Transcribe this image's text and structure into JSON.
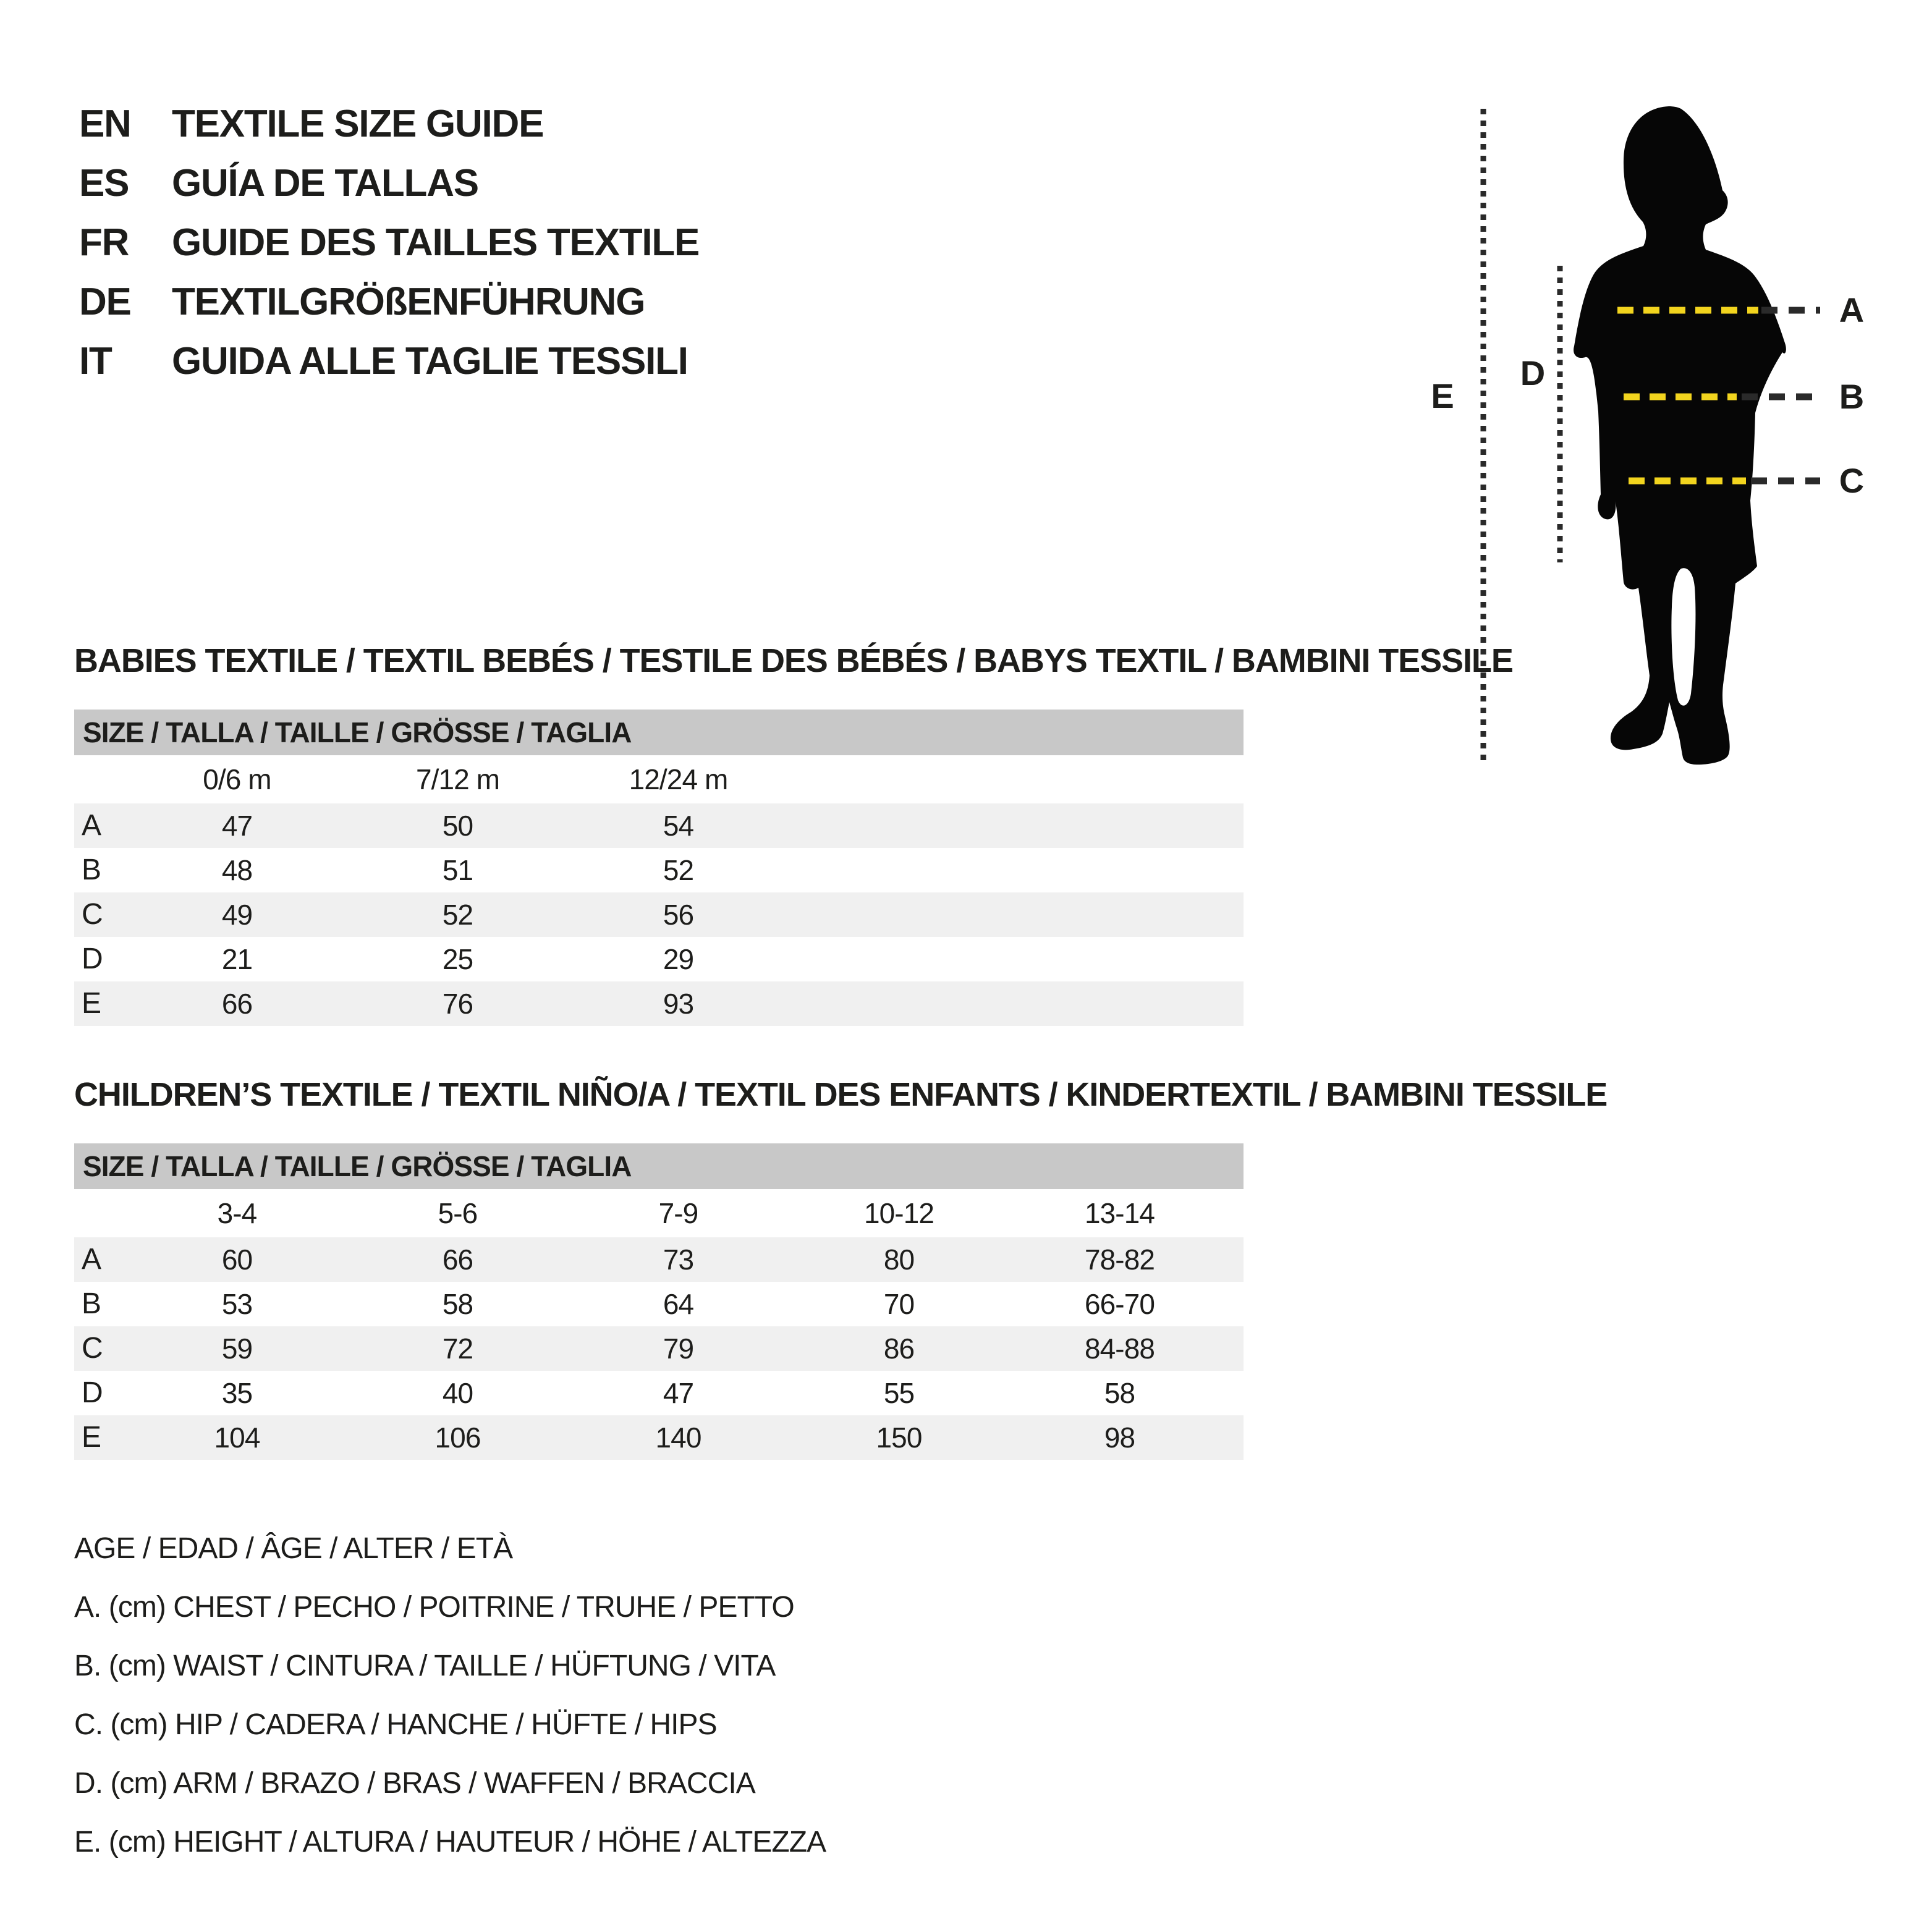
{
  "colors": {
    "ink": "#1d1d1b",
    "accent_yellow": "#f2d41e",
    "dash_dark": "#2a2a2a",
    "header_bar_gray": "#c8c8c8",
    "row_stripe_gray": "#f0f0f0",
    "silhouette_black": "#060606"
  },
  "header": {
    "languages": [
      {
        "code": "EN",
        "label": "TEXTILE SIZE GUIDE"
      },
      {
        "code": "ES",
        "label": "GUÍA DE TALLAS"
      },
      {
        "code": "FR",
        "label": "GUIDE DES TAILLES TEXTILE"
      },
      {
        "code": "DE",
        "label": "TEXTILGRÖßENFÜHRUNG"
      },
      {
        "code": "IT",
        "label": "GUIDA ALLE TAGLIE TESSILI"
      }
    ]
  },
  "figure": {
    "description": "child-silhouette-with-measurement-lines",
    "labels": {
      "a": "A",
      "b": "B",
      "c": "C",
      "d": "D",
      "e": "E"
    }
  },
  "babies_table": {
    "title": "BABIES TEXTILE / TEXTIL BEBÉS / TESTILE DES BÉBÉS / BABYS TEXTIL / BAMBINI TESSILE",
    "size_header": "SIZE / TALLA / TAILLE / GRÖSSE / TAGLIA",
    "columns": [
      "0/6 m",
      "7/12 m",
      "12/24 m"
    ],
    "rows": [
      {
        "label": "A",
        "values": [
          "47",
          "50",
          "54"
        ]
      },
      {
        "label": "B",
        "values": [
          "48",
          "51",
          "52"
        ]
      },
      {
        "label": "C",
        "values": [
          "49",
          "52",
          "56"
        ]
      },
      {
        "label": "D",
        "values": [
          "21",
          "25",
          "29"
        ]
      },
      {
        "label": "E",
        "values": [
          "66",
          "76",
          "93"
        ]
      }
    ]
  },
  "children_table": {
    "title": "CHILDREN’S TEXTILE / TEXTIL NIÑO/A / TEXTIL DES ENFANTS / KINDERTEXTIL / BAMBINI TESSILE",
    "size_header": "SIZE / TALLA / TAILLE / GRÖSSE / TAGLIA",
    "columns": [
      "3-4",
      "5-6",
      "7-9",
      "10-12",
      "13-14"
    ],
    "rows": [
      {
        "label": "A",
        "values": [
          "60",
          "66",
          "73",
          "80",
          "78-82"
        ]
      },
      {
        "label": "B",
        "values": [
          "53",
          "58",
          "64",
          "70",
          "66-70"
        ]
      },
      {
        "label": "C",
        "values": [
          "59",
          "72",
          "79",
          "86",
          "84-88"
        ]
      },
      {
        "label": "D",
        "values": [
          "35",
          "40",
          "47",
          "55",
          "58"
        ]
      },
      {
        "label": "E",
        "values": [
          "104",
          "106",
          "140",
          "150",
          "98"
        ]
      }
    ]
  },
  "legend": {
    "lines": [
      "AGE / EDAD / ÂGE / ALTER / ETÀ",
      "A. (cm) CHEST / PECHO / POITRINE / TRUHE / PETTO",
      "B. (cm) WAIST / CINTURA / TAILLE / HÜFTUNG / VITA",
      "C. (cm) HIP / CADERA / HANCHE / HÜFTE / HIPS",
      "D. (cm) ARM / BRAZO / BRAS / WAFFEN / BRACCIA",
      "E. (cm) HEIGHT / ALTURA / HAUTEUR / HÖHE / ALTEZZA"
    ]
  }
}
